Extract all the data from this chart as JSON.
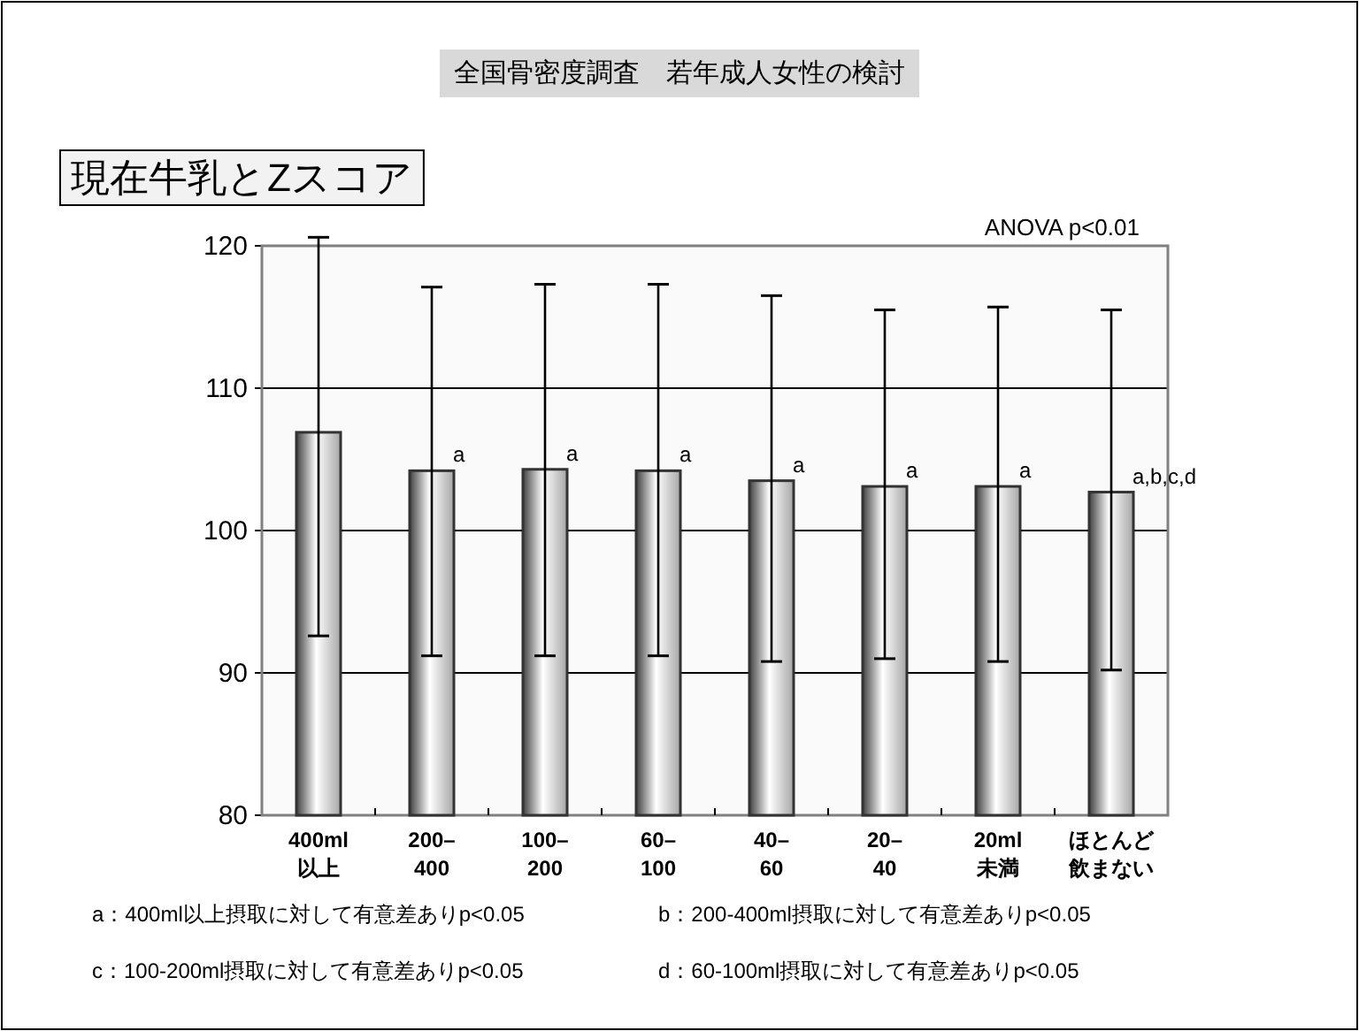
{
  "chart_data": {
    "type": "bar",
    "title": "全国骨密度調査　若年成人女性の検討",
    "subtitle": "現在牛乳とZスコア",
    "categories": [
      "400ml\n以上",
      "200–\n400",
      "100–\n200",
      "60–\n100",
      "40–\n60",
      "20–\n40",
      "20ml\n未満",
      "ほとんど飲まない"
    ],
    "values": [
      106.9,
      104.2,
      104.3,
      104.2,
      103.5,
      103.1,
      103.1,
      102.7
    ],
    "errors": [
      [
        92.6,
        120.6
      ],
      [
        91.2,
        117.1
      ],
      [
        91.2,
        117.3
      ],
      [
        91.2,
        117.3
      ],
      [
        90.8,
        116.5
      ],
      [
        91.0,
        115.5
      ],
      [
        90.8,
        115.7
      ],
      [
        90.2,
        115.5
      ]
    ],
    "color": "#333333",
    "ylim": [
      80,
      120
    ],
    "yticks": [
      80,
      90,
      100,
      110,
      120
    ],
    "grid": "y",
    "annotations": [
      "ANOVA p<0.01",
      "a：400ml以上摂取に対して有意差ありp<0.05",
      "b：200-400ml摂取に対して有意差ありp<0.05",
      "c：100-200ml摂取に対して有意差ありp<0.05",
      "d：60-100ml摂取に対して有意差ありp<0.05",
      {
        "text": "a",
        "x": "200–\n400",
        "y": 104.2
      },
      {
        "text": "a",
        "x": "100–\n200",
        "y": 104.3
      },
      {
        "text": "a",
        "x": "60–\n100",
        "y": 104.2
      },
      {
        "text": "a",
        "x": "40–\n60",
        "y": 103.5
      },
      {
        "text": "a",
        "x": "20–\n40",
        "y": 103.1
      },
      {
        "text": "a",
        "x": "20ml\n未満",
        "y": 103.1
      },
      {
        "text": "a,b,c,d",
        "x": "ほとんど飲まない",
        "y": 102.7
      }
    ]
  }
}
